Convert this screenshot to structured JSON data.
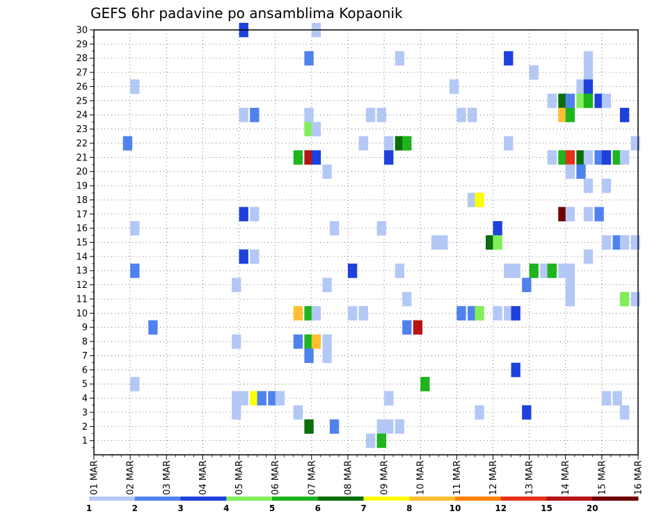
{
  "chart_data": {
    "type": "heatmap",
    "title": "GEFS 6hr padavine po ansamblima Kopaonik",
    "x_ticks": [
      "01 MAR",
      "02 MAR",
      "03 MAR",
      "04 MAR",
      "05 MAR",
      "06 MAR",
      "07 MAR",
      "08 MAR",
      "09 MAR",
      "10 MAR",
      "11 MAR",
      "12 MAR",
      "13 MAR",
      "14 MAR",
      "15 MAR",
      "16 MAR"
    ],
    "y_ticks": [
      1,
      2,
      3,
      4,
      5,
      6,
      7,
      8,
      9,
      10,
      11,
      12,
      13,
      14,
      15,
      16,
      17,
      18,
      19,
      20,
      21,
      22,
      23,
      24,
      25,
      26,
      27,
      28,
      29,
      30
    ],
    "ylim": [
      0,
      30
    ],
    "xlim_days": [
      1,
      16
    ],
    "grid": true,
    "time_step": "6hr",
    "colorbar": {
      "labels": [
        "1",
        "2",
        "3",
        "4",
        "5",
        "6",
        "7",
        "8",
        "10",
        "12",
        "15",
        "20"
      ],
      "colors": [
        "#b4c8f5",
        "#5082ee",
        "#1e41dc",
        "#82ee5a",
        "#1eb41e",
        "#0a6e0a",
        "#ffff00",
        "#ffbe32",
        "#ff8200",
        "#e63219",
        "#b41414",
        "#6e0000"
      ]
    },
    "cells": [
      {
        "m": 30,
        "d": 5.0,
        "c": 3
      },
      {
        "m": 30,
        "d": 7.0,
        "c": 1
      },
      {
        "m": 28,
        "d": 6.8,
        "c": 2
      },
      {
        "m": 28,
        "d": 9.3,
        "c": 1
      },
      {
        "m": 28,
        "d": 12.3,
        "c": 3
      },
      {
        "m": 28,
        "d": 14.5,
        "c": 1
      },
      {
        "m": 27,
        "d": 13.0,
        "c": 1
      },
      {
        "m": 27,
        "d": 14.5,
        "c": 1
      },
      {
        "m": 26,
        "d": 2.0,
        "c": 1
      },
      {
        "m": 26,
        "d": 10.8,
        "c": 1
      },
      {
        "m": 26,
        "d": 14.3,
        "c": 1
      },
      {
        "m": 26,
        "d": 14.5,
        "c": 3
      },
      {
        "m": 25,
        "d": 13.5,
        "c": 1
      },
      {
        "m": 25,
        "d": 13.8,
        "c": 6
      },
      {
        "m": 25,
        "d": 14.0,
        "c": 2
      },
      {
        "m": 25,
        "d": 14.3,
        "c": 4
      },
      {
        "m": 25,
        "d": 14.5,
        "c": 5
      },
      {
        "m": 25,
        "d": 14.8,
        "c": 3
      },
      {
        "m": 25,
        "d": 15.0,
        "c": 1
      },
      {
        "m": 24,
        "d": 5.0,
        "c": 1
      },
      {
        "m": 24,
        "d": 5.3,
        "c": 2
      },
      {
        "m": 24,
        "d": 6.8,
        "c": 1
      },
      {
        "m": 24,
        "d": 8.5,
        "c": 1
      },
      {
        "m": 24,
        "d": 8.8,
        "c": 1
      },
      {
        "m": 24,
        "d": 11.0,
        "c": 1
      },
      {
        "m": 24,
        "d": 11.3,
        "c": 1
      },
      {
        "m": 24,
        "d": 13.8,
        "c": 8
      },
      {
        "m": 24,
        "d": 14.0,
        "c": 5
      },
      {
        "m": 24,
        "d": 15.5,
        "c": 3
      },
      {
        "m": 23,
        "d": 6.8,
        "c": 4
      },
      {
        "m": 23,
        "d": 7.0,
        "c": 1
      },
      {
        "m": 22,
        "d": 1.8,
        "c": 2
      },
      {
        "m": 22,
        "d": 8.3,
        "c": 1
      },
      {
        "m": 22,
        "d": 9.0,
        "c": 1
      },
      {
        "m": 22,
        "d": 9.3,
        "c": 6
      },
      {
        "m": 22,
        "d": 9.5,
        "c": 5
      },
      {
        "m": 22,
        "d": 12.3,
        "c": 1
      },
      {
        "m": 22,
        "d": 15.8,
        "c": 1
      },
      {
        "m": 21,
        "d": 6.5,
        "c": 5
      },
      {
        "m": 21,
        "d": 6.8,
        "c": 11
      },
      {
        "m": 21,
        "d": 7.0,
        "c": 3
      },
      {
        "m": 21,
        "d": 9.0,
        "c": 3
      },
      {
        "m": 21,
        "d": 13.5,
        "c": 1
      },
      {
        "m": 21,
        "d": 13.8,
        "c": 5
      },
      {
        "m": 21,
        "d": 14.0,
        "c": 10
      },
      {
        "m": 21,
        "d": 14.3,
        "c": 6
      },
      {
        "m": 21,
        "d": 14.5,
        "c": 1
      },
      {
        "m": 21,
        "d": 14.8,
        "c": 2
      },
      {
        "m": 21,
        "d": 15.0,
        "c": 3
      },
      {
        "m": 21,
        "d": 15.3,
        "c": 5
      },
      {
        "m": 21,
        "d": 15.5,
        "c": 1
      },
      {
        "m": 20,
        "d": 7.3,
        "c": 1
      },
      {
        "m": 20,
        "d": 14.0,
        "c": 1
      },
      {
        "m": 20,
        "d": 14.3,
        "c": 2
      },
      {
        "m": 19,
        "d": 14.5,
        "c": 1
      },
      {
        "m": 19,
        "d": 15.0,
        "c": 1
      },
      {
        "m": 18,
        "d": 11.3,
        "c": 1
      },
      {
        "m": 18,
        "d": 11.5,
        "c": 7
      },
      {
        "m": 17,
        "d": 5.0,
        "c": 3
      },
      {
        "m": 17,
        "d": 5.3,
        "c": 1
      },
      {
        "m": 17,
        "d": 13.8,
        "c": 12
      },
      {
        "m": 17,
        "d": 14.0,
        "c": 1
      },
      {
        "m": 17,
        "d": 14.5,
        "c": 1
      },
      {
        "m": 17,
        "d": 14.8,
        "c": 2
      },
      {
        "m": 16,
        "d": 2.0,
        "c": 1
      },
      {
        "m": 16,
        "d": 7.5,
        "c": 1
      },
      {
        "m": 16,
        "d": 8.8,
        "c": 1
      },
      {
        "m": 16,
        "d": 12.0,
        "c": 3
      },
      {
        "m": 15,
        "d": 10.3,
        "c": 1
      },
      {
        "m": 15,
        "d": 10.5,
        "c": 1
      },
      {
        "m": 15,
        "d": 11.8,
        "c": 6
      },
      {
        "m": 15,
        "d": 12.0,
        "c": 4
      },
      {
        "m": 15,
        "d": 15.0,
        "c": 1
      },
      {
        "m": 15,
        "d": 15.3,
        "c": 2
      },
      {
        "m": 15,
        "d": 15.5,
        "c": 1
      },
      {
        "m": 15,
        "d": 15.8,
        "c": 1
      },
      {
        "m": 14,
        "d": 5.0,
        "c": 3
      },
      {
        "m": 14,
        "d": 5.3,
        "c": 1
      },
      {
        "m": 14,
        "d": 14.5,
        "c": 1
      },
      {
        "m": 13,
        "d": 2.0,
        "c": 2
      },
      {
        "m": 13,
        "d": 8.0,
        "c": 3
      },
      {
        "m": 13,
        "d": 9.3,
        "c": 1
      },
      {
        "m": 13,
        "d": 12.3,
        "c": 1
      },
      {
        "m": 13,
        "d": 12.5,
        "c": 1
      },
      {
        "m": 13,
        "d": 13.0,
        "c": 5
      },
      {
        "m": 13,
        "d": 13.3,
        "c": 1
      },
      {
        "m": 13,
        "d": 13.5,
        "c": 5
      },
      {
        "m": 13,
        "d": 13.8,
        "c": 1
      },
      {
        "m": 13,
        "d": 14.0,
        "c": 1
      },
      {
        "m": 12,
        "d": 4.8,
        "c": 1
      },
      {
        "m": 12,
        "d": 7.3,
        "c": 1
      },
      {
        "m": 12,
        "d": 12.8,
        "c": 2
      },
      {
        "m": 12,
        "d": 14.0,
        "c": 1
      },
      {
        "m": 11,
        "d": 9.5,
        "c": 1
      },
      {
        "m": 11,
        "d": 14.0,
        "c": 1
      },
      {
        "m": 11,
        "d": 15.5,
        "c": 4
      },
      {
        "m": 11,
        "d": 15.8,
        "c": 1
      },
      {
        "m": 10,
        "d": 6.5,
        "c": 8
      },
      {
        "m": 10,
        "d": 6.8,
        "c": 5
      },
      {
        "m": 10,
        "d": 7.0,
        "c": 1
      },
      {
        "m": 10,
        "d": 8.0,
        "c": 1
      },
      {
        "m": 10,
        "d": 8.3,
        "c": 1
      },
      {
        "m": 10,
        "d": 11.0,
        "c": 2
      },
      {
        "m": 10,
        "d": 11.3,
        "c": 2
      },
      {
        "m": 10,
        "d": 11.5,
        "c": 4
      },
      {
        "m": 10,
        "d": 12.0,
        "c": 1
      },
      {
        "m": 10,
        "d": 12.3,
        "c": 1
      },
      {
        "m": 10,
        "d": 12.5,
        "c": 3
      },
      {
        "m": 9,
        "d": 2.5,
        "c": 2
      },
      {
        "m": 9,
        "d": 9.5,
        "c": 2
      },
      {
        "m": 9,
        "d": 9.8,
        "c": 11
      },
      {
        "m": 8,
        "d": 4.8,
        "c": 1
      },
      {
        "m": 8,
        "d": 6.5,
        "c": 2
      },
      {
        "m": 8,
        "d": 6.8,
        "c": 5
      },
      {
        "m": 8,
        "d": 7.0,
        "c": 8
      },
      {
        "m": 8,
        "d": 7.3,
        "c": 1
      },
      {
        "m": 7,
        "d": 6.8,
        "c": 2
      },
      {
        "m": 7,
        "d": 7.3,
        "c": 1
      },
      {
        "m": 6,
        "d": 12.5,
        "c": 3
      },
      {
        "m": 5,
        "d": 2.0,
        "c": 1
      },
      {
        "m": 5,
        "d": 10.0,
        "c": 5
      },
      {
        "m": 4,
        "d": 4.8,
        "c": 1
      },
      {
        "m": 4,
        "d": 5.0,
        "c": 1
      },
      {
        "m": 4,
        "d": 5.3,
        "c": 7
      },
      {
        "m": 4,
        "d": 5.5,
        "c": 2
      },
      {
        "m": 4,
        "d": 5.8,
        "c": 2
      },
      {
        "m": 4,
        "d": 6.0,
        "c": 1
      },
      {
        "m": 4,
        "d": 9.0,
        "c": 1
      },
      {
        "m": 4,
        "d": 15.0,
        "c": 1
      },
      {
        "m": 4,
        "d": 15.3,
        "c": 1
      },
      {
        "m": 3,
        "d": 4.8,
        "c": 1
      },
      {
        "m": 3,
        "d": 6.5,
        "c": 1
      },
      {
        "m": 3,
        "d": 11.5,
        "c": 1
      },
      {
        "m": 3,
        "d": 12.8,
        "c": 3
      },
      {
        "m": 3,
        "d": 15.5,
        "c": 1
      },
      {
        "m": 2,
        "d": 6.8,
        "c": 6
      },
      {
        "m": 2,
        "d": 7.5,
        "c": 2
      },
      {
        "m": 2,
        "d": 8.8,
        "c": 1
      },
      {
        "m": 2,
        "d": 9.0,
        "c": 1
      },
      {
        "m": 2,
        "d": 9.3,
        "c": 1
      },
      {
        "m": 1,
        "d": 8.5,
        "c": 1
      },
      {
        "m": 1,
        "d": 8.8,
        "c": 5
      }
    ]
  }
}
